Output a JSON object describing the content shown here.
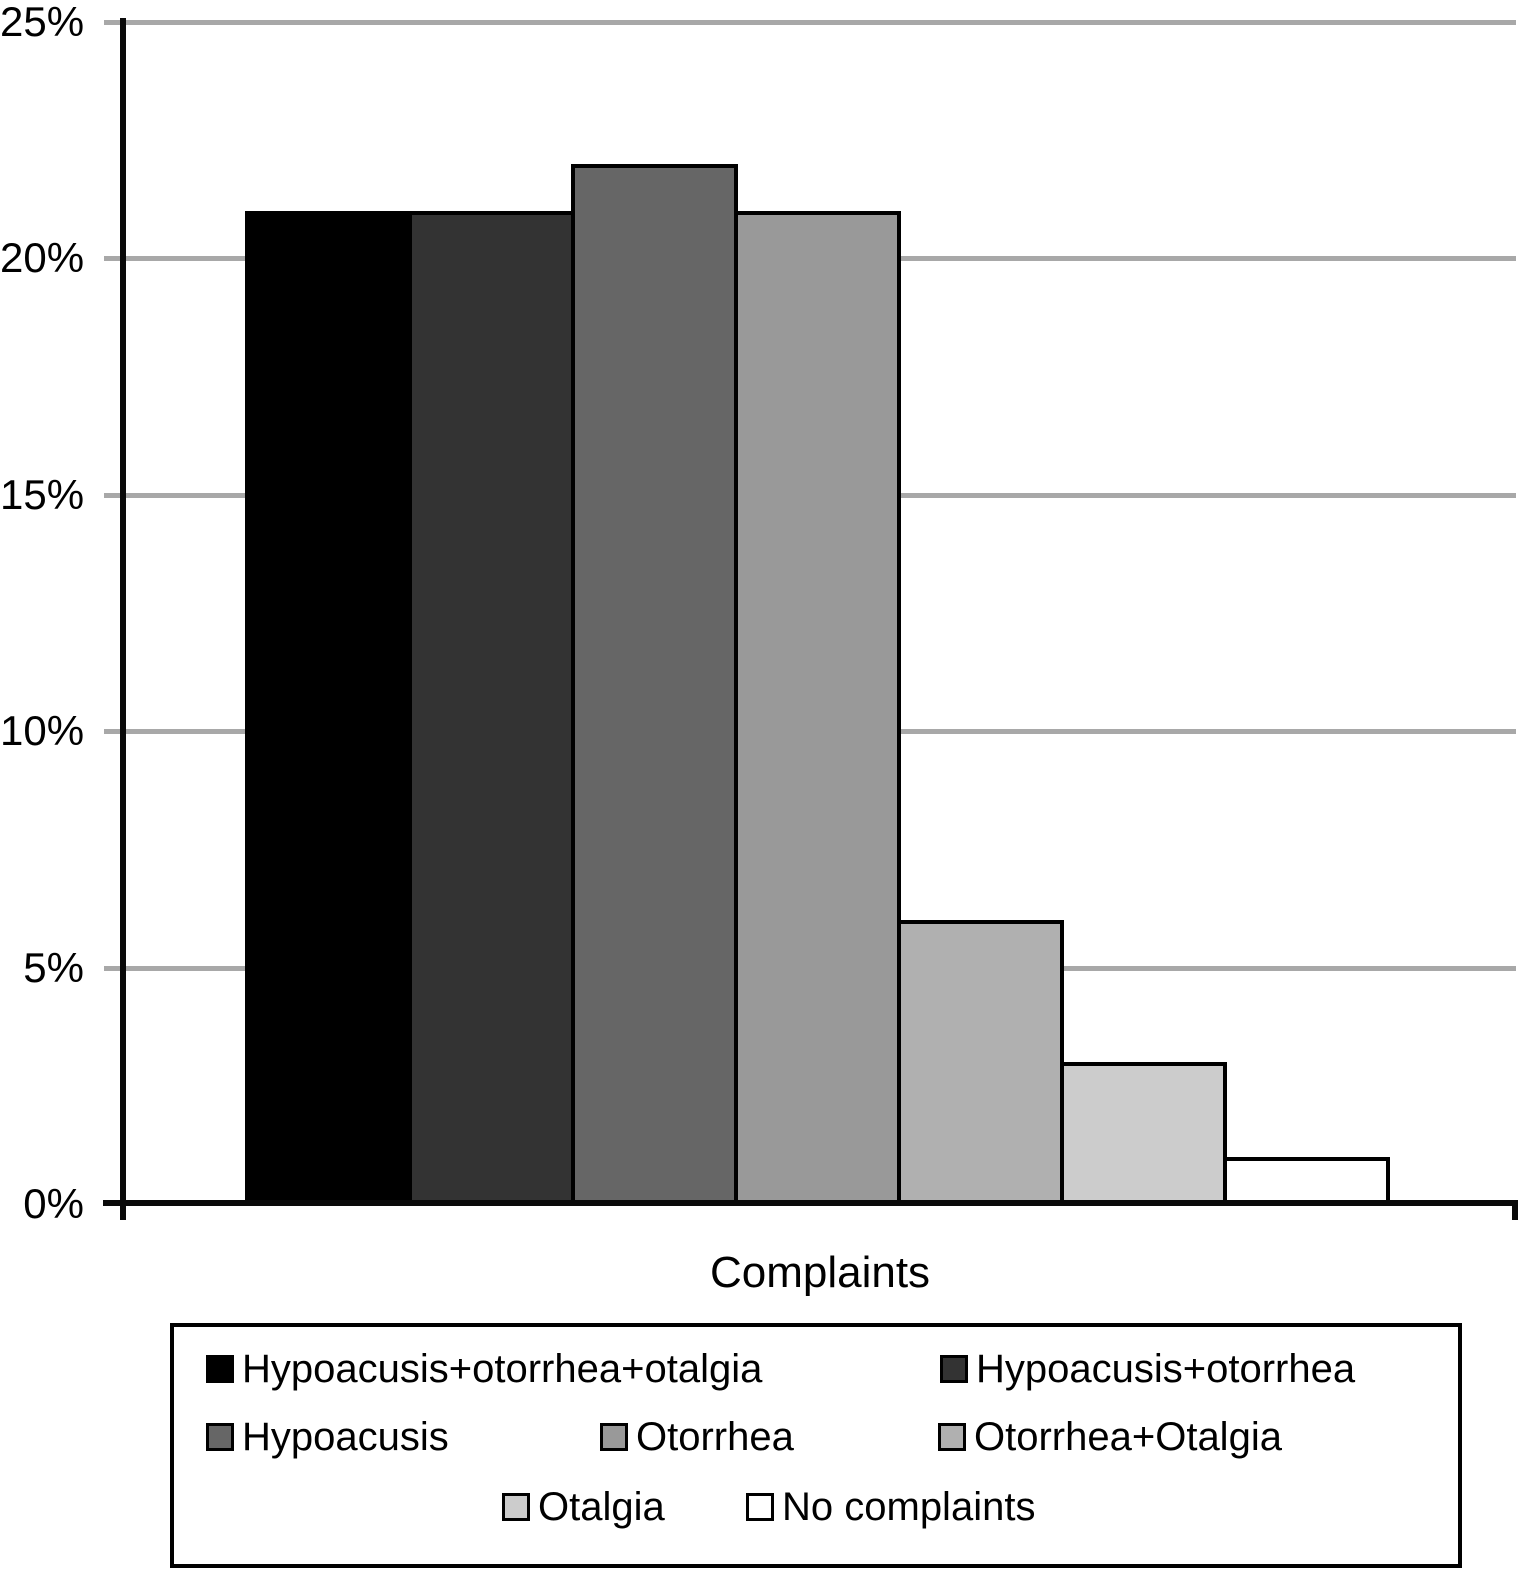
{
  "chart_data": {
    "type": "bar",
    "title": "",
    "xlabel": "Complaints",
    "ylabel": "",
    "unit": "%",
    "ylim": [
      0,
      25
    ],
    "yticks": [
      0,
      5,
      10,
      15,
      20,
      25
    ],
    "ytick_labels": [
      "0%",
      "5%",
      "10%",
      "15%",
      "20%",
      "25%"
    ],
    "grid": true,
    "gridline_color": "#a8a8a8",
    "axis_color": "#0a0a0a",
    "legend_position": "bottom-box",
    "categories": [
      "Hypoacusis+otorrhea+otalgia",
      "Hypoacusis+otorrhea",
      "Hypoacusis",
      "Otorrhea",
      "Otorrhea+Otalgia",
      "Otalgia",
      "No complaints"
    ],
    "values": [
      21,
      21,
      22,
      21,
      6,
      3,
      1
    ],
    "bar_colors": [
      "#000000",
      "#333333",
      "#666666",
      "#999999",
      "#b0b0b0",
      "#cccccc",
      "#ffffff"
    ]
  }
}
